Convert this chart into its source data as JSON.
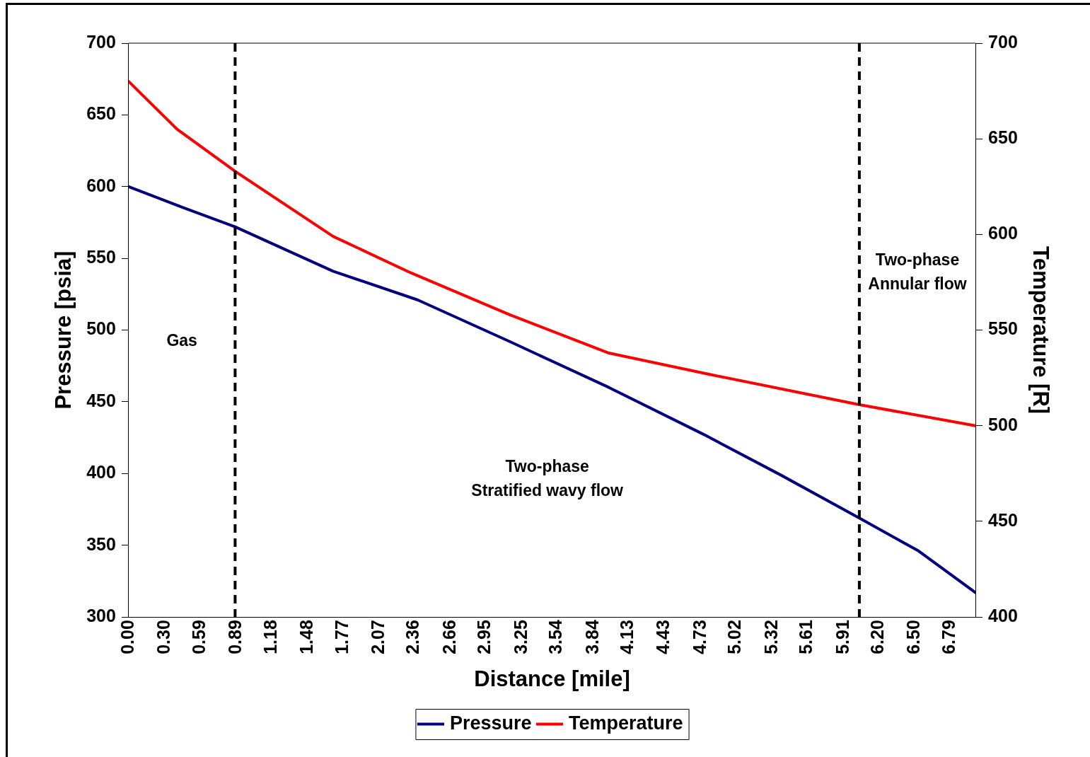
{
  "chart_data": {
    "type": "line",
    "xlabel": "Distance [mile]",
    "ylabel": "Pressure [psia]",
    "y2label": "Temperature [R]",
    "xlim": [
      0,
      7.0
    ],
    "xticks": [
      {
        "value": 0,
        "label": "0.00"
      },
      {
        "value": 0.3,
        "label": "0.30"
      },
      0.59,
      0.89,
      1.18,
      1.48,
      1.77,
      2.07,
      2.36,
      2.66,
      2.95,
      3.25,
      3.54,
      3.84,
      4.13,
      4.43,
      4.73,
      5.02,
      5.32,
      5.61,
      5.91,
      {
        "value": 6.2,
        "label": "6.20"
      },
      {
        "value": 6.5,
        "label": "6.50"
      },
      6.79
    ],
    "ylim": [
      300,
      700
    ],
    "yticks": [
      300,
      350,
      400,
      450,
      500,
      550,
      600,
      650,
      700
    ],
    "y2lim": [
      400,
      700
    ],
    "y2ticks": [
      400,
      450,
      500,
      550,
      600,
      650,
      700
    ],
    "series": [
      {
        "name": "Pressure",
        "color": "#000080",
        "x": [
          0,
          0.4,
          0.88,
          1.69,
          2.39,
          3.15,
          3.97,
          4.76,
          5.39,
          6.04,
          6.53,
          7.0
        ],
        "values": [
          600,
          587,
          572,
          541,
          521,
          492,
          460,
          427,
          399,
          369,
          346,
          317
        ]
      },
      {
        "name": "Temperature",
        "color": "#ff0000",
        "axis": "y2",
        "x": [
          0,
          0.4,
          0.88,
          1.69,
          2.33,
          3.15,
          3.97,
          4.79,
          6.04,
          7.0
        ],
        "values": [
          680,
          655,
          633,
          599,
          580,
          558,
          538,
          527,
          511,
          500
        ]
      }
    ],
    "ref_lines": [
      {
        "axis": "x",
        "value": 0.88,
        "color": "#000000",
        "line_style": "dashed"
      },
      {
        "axis": "x",
        "value": 6.04,
        "color": "#000000",
        "line_style": "dashed"
      }
    ],
    "annotations": [
      "Gas",
      "Two-phase\nStratified wavy flow",
      "Two-phase\nAnnular flow"
    ],
    "grid": false,
    "legend": "bottom",
    "marker": "none",
    "line_style": "solid"
  }
}
